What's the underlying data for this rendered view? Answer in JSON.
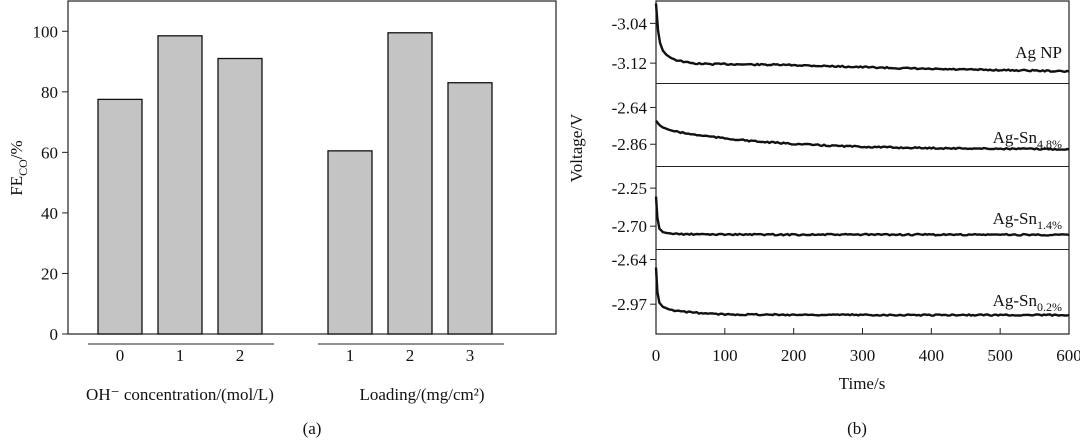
{
  "chart_data": [
    {
      "type": "bar",
      "panel_label": "(a)",
      "ylabel": {
        "main": "FE",
        "sub": "CO",
        "suffix": "/%"
      },
      "ylim": [
        0,
        110
      ],
      "yticks": [
        "0",
        "20",
        "40",
        "60",
        "80",
        "100"
      ],
      "groups": [
        {
          "xlabel": "OH⁻ concentration/(mol/L)",
          "categories": [
            "0",
            "1",
            "2"
          ],
          "values": [
            77.5,
            98.5,
            91
          ]
        },
        {
          "xlabel": "Loading/(mg/cm²)",
          "categories": [
            "1",
            "2",
            "3"
          ],
          "values": [
            60.5,
            99.5,
            83
          ]
        }
      ]
    },
    {
      "type": "line",
      "panel_label": "(b)",
      "xlabel": "Time/s",
      "ylabel": "Voltage/V",
      "xlim": [
        0,
        600
      ],
      "xticks": [
        "0",
        "100",
        "200",
        "300",
        "400",
        "500",
        "600"
      ],
      "series": [
        {
          "name": "Ag NP",
          "name_sub": "",
          "ytick_labels": [
            "-3.04",
            "-3.12"
          ],
          "ytick_values": [
            -3.04,
            -3.12
          ],
          "ylim": [
            -3.16,
            -2.995
          ],
          "x": [
            0,
            3,
            6,
            10,
            15,
            20,
            30,
            40,
            50,
            60,
            80,
            100,
            150,
            200,
            250,
            300,
            350,
            400,
            450,
            500,
            550,
            600
          ],
          "y": [
            -3.0,
            -3.055,
            -3.08,
            -3.095,
            -3.103,
            -3.108,
            -3.114,
            -3.117,
            -3.12,
            -3.121,
            -3.122,
            -3.122,
            -3.123,
            -3.124,
            -3.126,
            -3.128,
            -3.13,
            -3.132,
            -3.133,
            -3.134,
            -3.135,
            -3.137
          ]
        },
        {
          "name": "Ag-Sn",
          "name_sub": "4.8%",
          "ytick_labels": [
            "-2.64",
            "-2.86"
          ],
          "ytick_values": [
            -2.64,
            -2.86
          ],
          "ylim": [
            -2.99,
            -2.5
          ],
          "x": [
            0,
            5,
            10,
            20,
            30,
            50,
            75,
            100,
            150,
            200,
            250,
            300,
            350,
            400,
            450,
            500,
            550,
            600
          ],
          "y": [
            -2.72,
            -2.745,
            -2.76,
            -2.775,
            -2.785,
            -2.8,
            -2.812,
            -2.825,
            -2.845,
            -2.858,
            -2.868,
            -2.875,
            -2.88,
            -2.883,
            -2.885,
            -2.887,
            -2.888,
            -2.89
          ]
        },
        {
          "name": "Ag-Sn",
          "name_sub": "1.4%",
          "ytick_labels": [
            "-2.25",
            "-2.70"
          ],
          "ytick_values": [
            -2.25,
            -2.7
          ],
          "ylim": [
            -2.97,
            -2.0
          ],
          "x": [
            0,
            2,
            5,
            10,
            15,
            25,
            40,
            60,
            100,
            200,
            300,
            400,
            500,
            600
          ],
          "y": [
            -2.35,
            -2.6,
            -2.73,
            -2.77,
            -2.78,
            -2.79,
            -2.795,
            -2.797,
            -2.798,
            -2.8,
            -2.8,
            -2.801,
            -2.801,
            -2.802
          ]
        },
        {
          "name": "Ag-Sn",
          "name_sub": "0.2%",
          "ytick_labels": [
            "-2.64",
            "-2.97"
          ],
          "ytick_values": [
            -2.64,
            -2.97
          ],
          "ylim": [
            -3.19,
            -2.57
          ],
          "x": [
            0,
            2,
            5,
            10,
            20,
            30,
            50,
            75,
            100,
            200,
            300,
            400,
            500,
            600
          ],
          "y": [
            -2.7,
            -2.88,
            -2.96,
            -2.99,
            -3.01,
            -3.02,
            -3.03,
            -3.04,
            -3.045,
            -3.048,
            -3.049,
            -3.05,
            -3.05,
            -3.05
          ]
        }
      ]
    }
  ]
}
